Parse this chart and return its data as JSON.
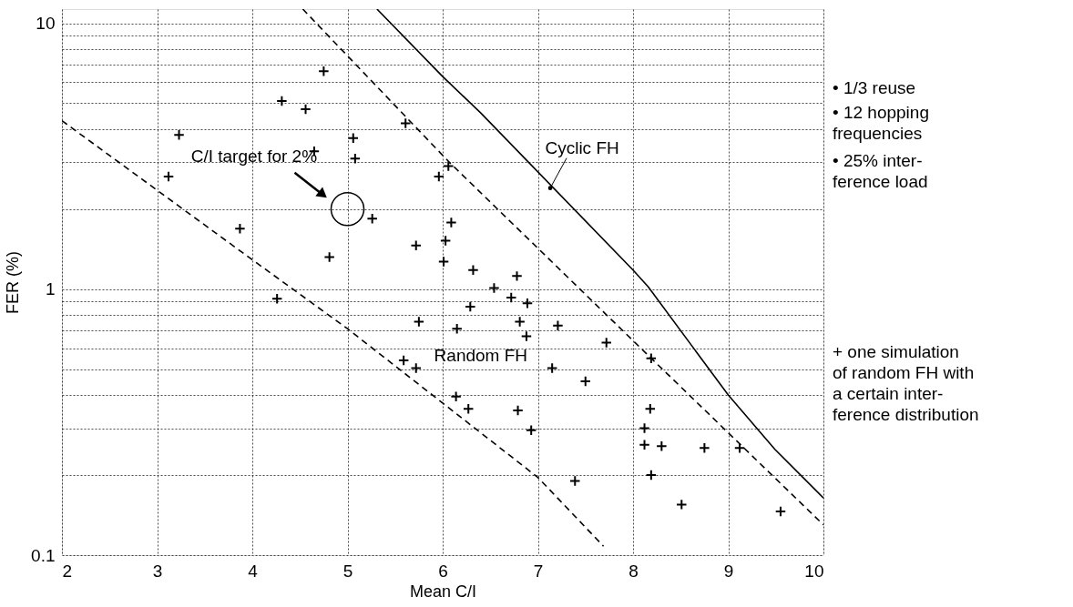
{
  "chart_data": {
    "type": "scatter",
    "xlabel": "Mean C/I",
    "ylabel": "FER (%)",
    "xlim": [
      2,
      10
    ],
    "xticks": [
      2,
      3,
      4,
      5,
      6,
      7,
      8,
      9,
      10
    ],
    "ylim": [
      0.1,
      11.3
    ],
    "yticks": [
      0.1,
      {
        "value": 0.2,
        "label": null
      },
      {
        "value": 0.3,
        "label": null
      },
      {
        "value": 0.4,
        "label": null
      },
      {
        "value": 0.5,
        "label": null
      },
      {
        "value": 0.6,
        "label": null
      },
      {
        "value": 0.7,
        "label": null
      },
      {
        "value": 0.8,
        "label": null
      },
      {
        "value": 0.9,
        "label": null
      },
      1,
      {
        "value": 2,
        "label": null
      },
      {
        "value": 3,
        "label": null
      },
      {
        "value": 4,
        "label": null
      },
      {
        "value": 5,
        "label": null
      },
      {
        "value": 6,
        "label": null
      },
      {
        "value": 7,
        "label": null
      },
      {
        "value": 8,
        "label": null
      },
      {
        "value": 9,
        "label": null
      },
      10
    ],
    "log": "y",
    "grid": true,
    "series": [
      {
        "type": "line",
        "color": "#000000",
        "line_style": "solid",
        "x": [
          5.31,
          6.0,
          6.4,
          8.0,
          8.16,
          9.0,
          9.49,
          10
        ],
        "values": [
          11.3,
          6.3,
          4.6,
          1.18,
          1.02,
          0.4,
          0.25,
          0.164
        ]
      },
      {
        "type": "line",
        "color": "#000000",
        "line_style": "dashed",
        "x": [
          4.53,
          6.07,
          8.19,
          10
        ],
        "values": [
          11.3,
          3.0,
          0.55,
          0.13
        ]
      },
      {
        "type": "line",
        "color": "#000000",
        "line_style": "dashed",
        "x": [
          2,
          4,
          5,
          7,
          7.69
        ],
        "values": [
          4.3,
          1.29,
          0.71,
          0.196,
          0.108
        ]
      },
      {
        "type": "scatter",
        "marker": "circle",
        "color": "#000000",
        "x": [
          5
        ],
        "values": [
          2
        ]
      },
      {
        "marker": "cross",
        "color": "#000000",
        "x": [
          3.12,
          3.23,
          3.87,
          4.26,
          4.31,
          4.56,
          4.65,
          4.75,
          4.81,
          5.06,
          5.08,
          5.26,
          5.59,
          5.61,
          5.72,
          5.72,
          5.75,
          5.96,
          6.01,
          6.03,
          6.06,
          6.09,
          6.14,
          6.15,
          6.27,
          6.29,
          6.32,
          6.54,
          6.72,
          6.78,
          6.79,
          6.81,
          6.89,
          6.88,
          6.93,
          7.15,
          7.21,
          7.39,
          7.5,
          7.72,
          8.12,
          8.12,
          8.18,
          8.19,
          8.19,
          8.3,
          8.51,
          8.75,
          9.12,
          9.55
        ],
        "values": [
          2.65,
          3.8,
          1.69,
          0.92,
          5.1,
          4.75,
          3.3,
          6.6,
          1.32,
          3.7,
          3.1,
          1.84,
          0.54,
          4.2,
          1.46,
          0.505,
          0.755,
          2.65,
          1.27,
          1.52,
          2.9,
          1.78,
          0.395,
          0.71,
          0.355,
          0.86,
          1.18,
          1.01,
          0.93,
          1.12,
          0.35,
          0.755,
          0.885,
          0.665,
          0.295,
          0.505,
          0.73,
          0.19,
          0.45,
          0.63,
          0.3,
          0.26,
          0.355,
          0.55,
          0.2,
          0.257,
          0.155,
          0.253,
          0.253,
          0.146
        ]
      }
    ],
    "annotations": [
      "C/I target for 2%",
      {
        "text": "Cyclic FH",
        "x": 7.13,
        "y": 2.4
      },
      "Random FH",
      "• 1/3 reuse",
      "• 12 hopping\n  frequencies",
      "• 25% inter-\n  ference load",
      "+  one simulation\nof random FH with\na certain inter-\nference distribution"
    ]
  }
}
